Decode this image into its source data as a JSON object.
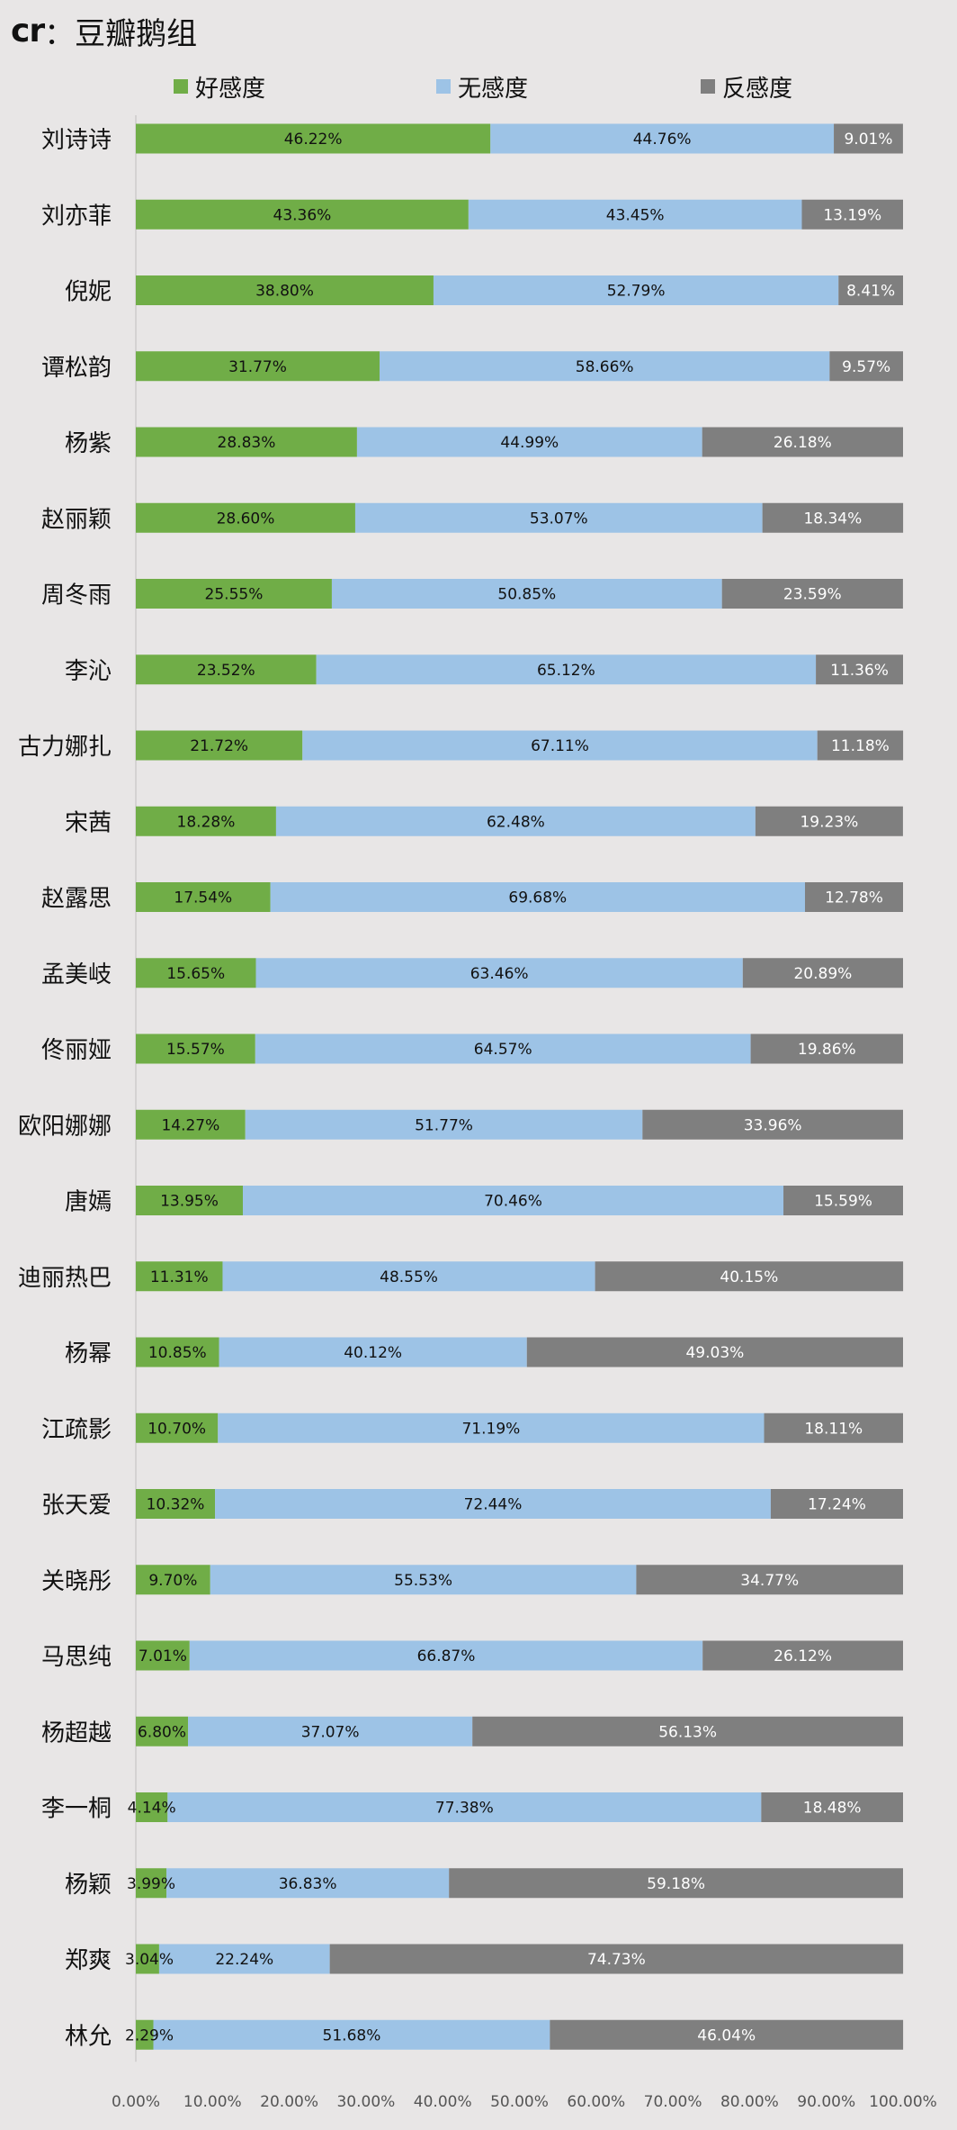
{
  "title": {
    "prefix": "cr",
    "separator": "：",
    "text": "豆瓣鹅组"
  },
  "colors": {
    "good": "#70ad47",
    "neutral": "#9dc3e6",
    "bad": "#7f7f7f"
  },
  "chart_data": {
    "type": "bar",
    "orientation": "horizontal",
    "stacked": true,
    "categories": [
      "刘诗诗",
      "刘亦菲",
      "倪妮",
      "谭松韵",
      "杨紫",
      "赵丽颖",
      "周冬雨",
      "李沁",
      "古力娜扎",
      "宋茜",
      "赵露思",
      "孟美岐",
      "佟丽娅",
      "欧阳娜娜",
      "唐嫣",
      "迪丽热巴",
      "杨幂",
      "江疏影",
      "张天爱",
      "关晓彤",
      "马思纯",
      "杨超越",
      "李一桐",
      "杨颖",
      "郑爽",
      "林允"
    ],
    "series": [
      {
        "name": "好感度",
        "color": "#70ad47",
        "values": [
          46.22,
          43.36,
          38.8,
          31.77,
          28.83,
          28.6,
          25.55,
          23.52,
          21.72,
          18.28,
          17.54,
          15.65,
          15.57,
          14.27,
          13.95,
          11.31,
          10.85,
          10.7,
          10.32,
          9.7,
          7.01,
          6.8,
          4.14,
          3.99,
          3.04,
          2.29
        ]
      },
      {
        "name": "无感度",
        "color": "#9dc3e6",
        "values": [
          44.76,
          43.45,
          52.79,
          58.66,
          44.99,
          53.07,
          50.85,
          65.12,
          67.11,
          62.48,
          69.68,
          63.46,
          64.57,
          51.77,
          70.46,
          48.55,
          40.12,
          71.19,
          72.44,
          55.53,
          66.87,
          37.07,
          77.38,
          36.83,
          22.24,
          51.68
        ]
      },
      {
        "name": "反感度",
        "color": "#7f7f7f",
        "values": [
          9.01,
          13.19,
          8.41,
          9.57,
          26.18,
          18.34,
          23.59,
          11.36,
          11.18,
          19.23,
          12.78,
          20.89,
          19.86,
          33.96,
          15.59,
          40.15,
          49.03,
          18.11,
          17.24,
          34.77,
          26.12,
          56.13,
          18.48,
          59.18,
          74.73,
          46.04
        ]
      }
    ],
    "xlim": [
      0,
      100
    ],
    "xticks": [
      "0.00%",
      "10.00%",
      "20.00%",
      "30.00%",
      "40.00%",
      "50.00%",
      "60.00%",
      "70.00%",
      "80.00%",
      "90.00%",
      "100.00%"
    ],
    "value_suffix": "%",
    "legend_position": "top",
    "grid": false
  }
}
